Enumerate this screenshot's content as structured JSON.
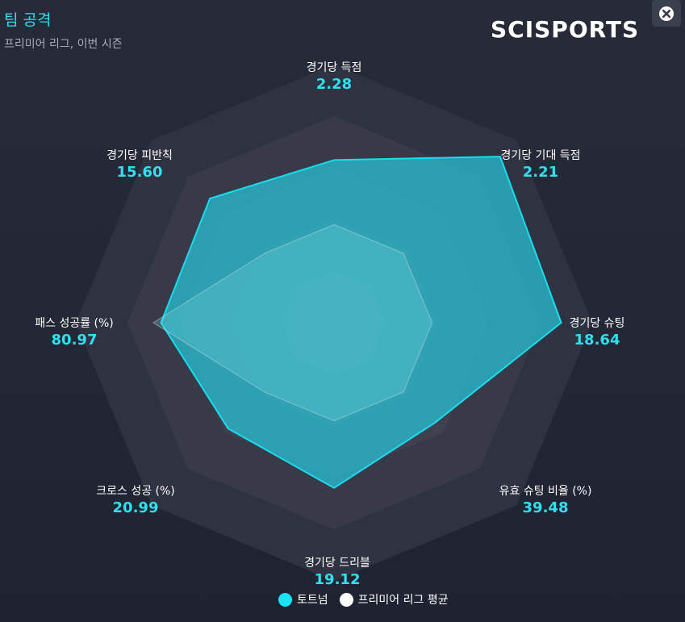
{
  "header": {
    "title": "팀 공격",
    "subtitle": "프리미어 리그, 이번 시즌",
    "logo_text": "SCISPORTS"
  },
  "close_icon": "close-icon",
  "colors": {
    "team": "#27c6d8",
    "team_stroke": "#18dcf0",
    "league": "#a9aeb8",
    "value_text": "#2ee1f0"
  },
  "chart_data": {
    "type": "radar",
    "axes": [
      {
        "label": "경기당 득점",
        "value": "2.28",
        "team_norm": 0.63,
        "league_norm": 0.38
      },
      {
        "label": "경기당 기대 득점",
        "value": "2.21",
        "team_norm": 0.91,
        "league_norm": 0.38
      },
      {
        "label": "경기당 슈팅",
        "value": "18.64",
        "team_norm": 0.88,
        "league_norm": 0.38
      },
      {
        "label": "유효 슈팅 비율 (%)",
        "value": "39.48",
        "team_norm": 0.55,
        "league_norm": 0.38
      },
      {
        "label": "경기당 드리블",
        "value": "19.12",
        "team_norm": 0.64,
        "league_norm": 0.38
      },
      {
        "label": "크로스 성공 (%)",
        "value": "20.99",
        "team_norm": 0.58,
        "league_norm": 0.38
      },
      {
        "label": "패스 성공률 (%)",
        "value": "80.97",
        "team_norm": 0.67,
        "league_norm": 0.7
      },
      {
        "label": "경기당 피반칙",
        "value": "15.60",
        "team_norm": 0.68,
        "league_norm": 0.38
      }
    ],
    "rings": [
      0.2,
      0.4,
      0.6,
      0.8,
      1.0
    ],
    "series": [
      {
        "name": "토트넘",
        "key": "team_norm"
      },
      {
        "name": "프리미어 리그 평균",
        "key": "league_norm"
      }
    ],
    "legend": "bottom"
  },
  "legend": {
    "team_label": "토트넘",
    "league_label": "프리미어 리그 평균"
  }
}
